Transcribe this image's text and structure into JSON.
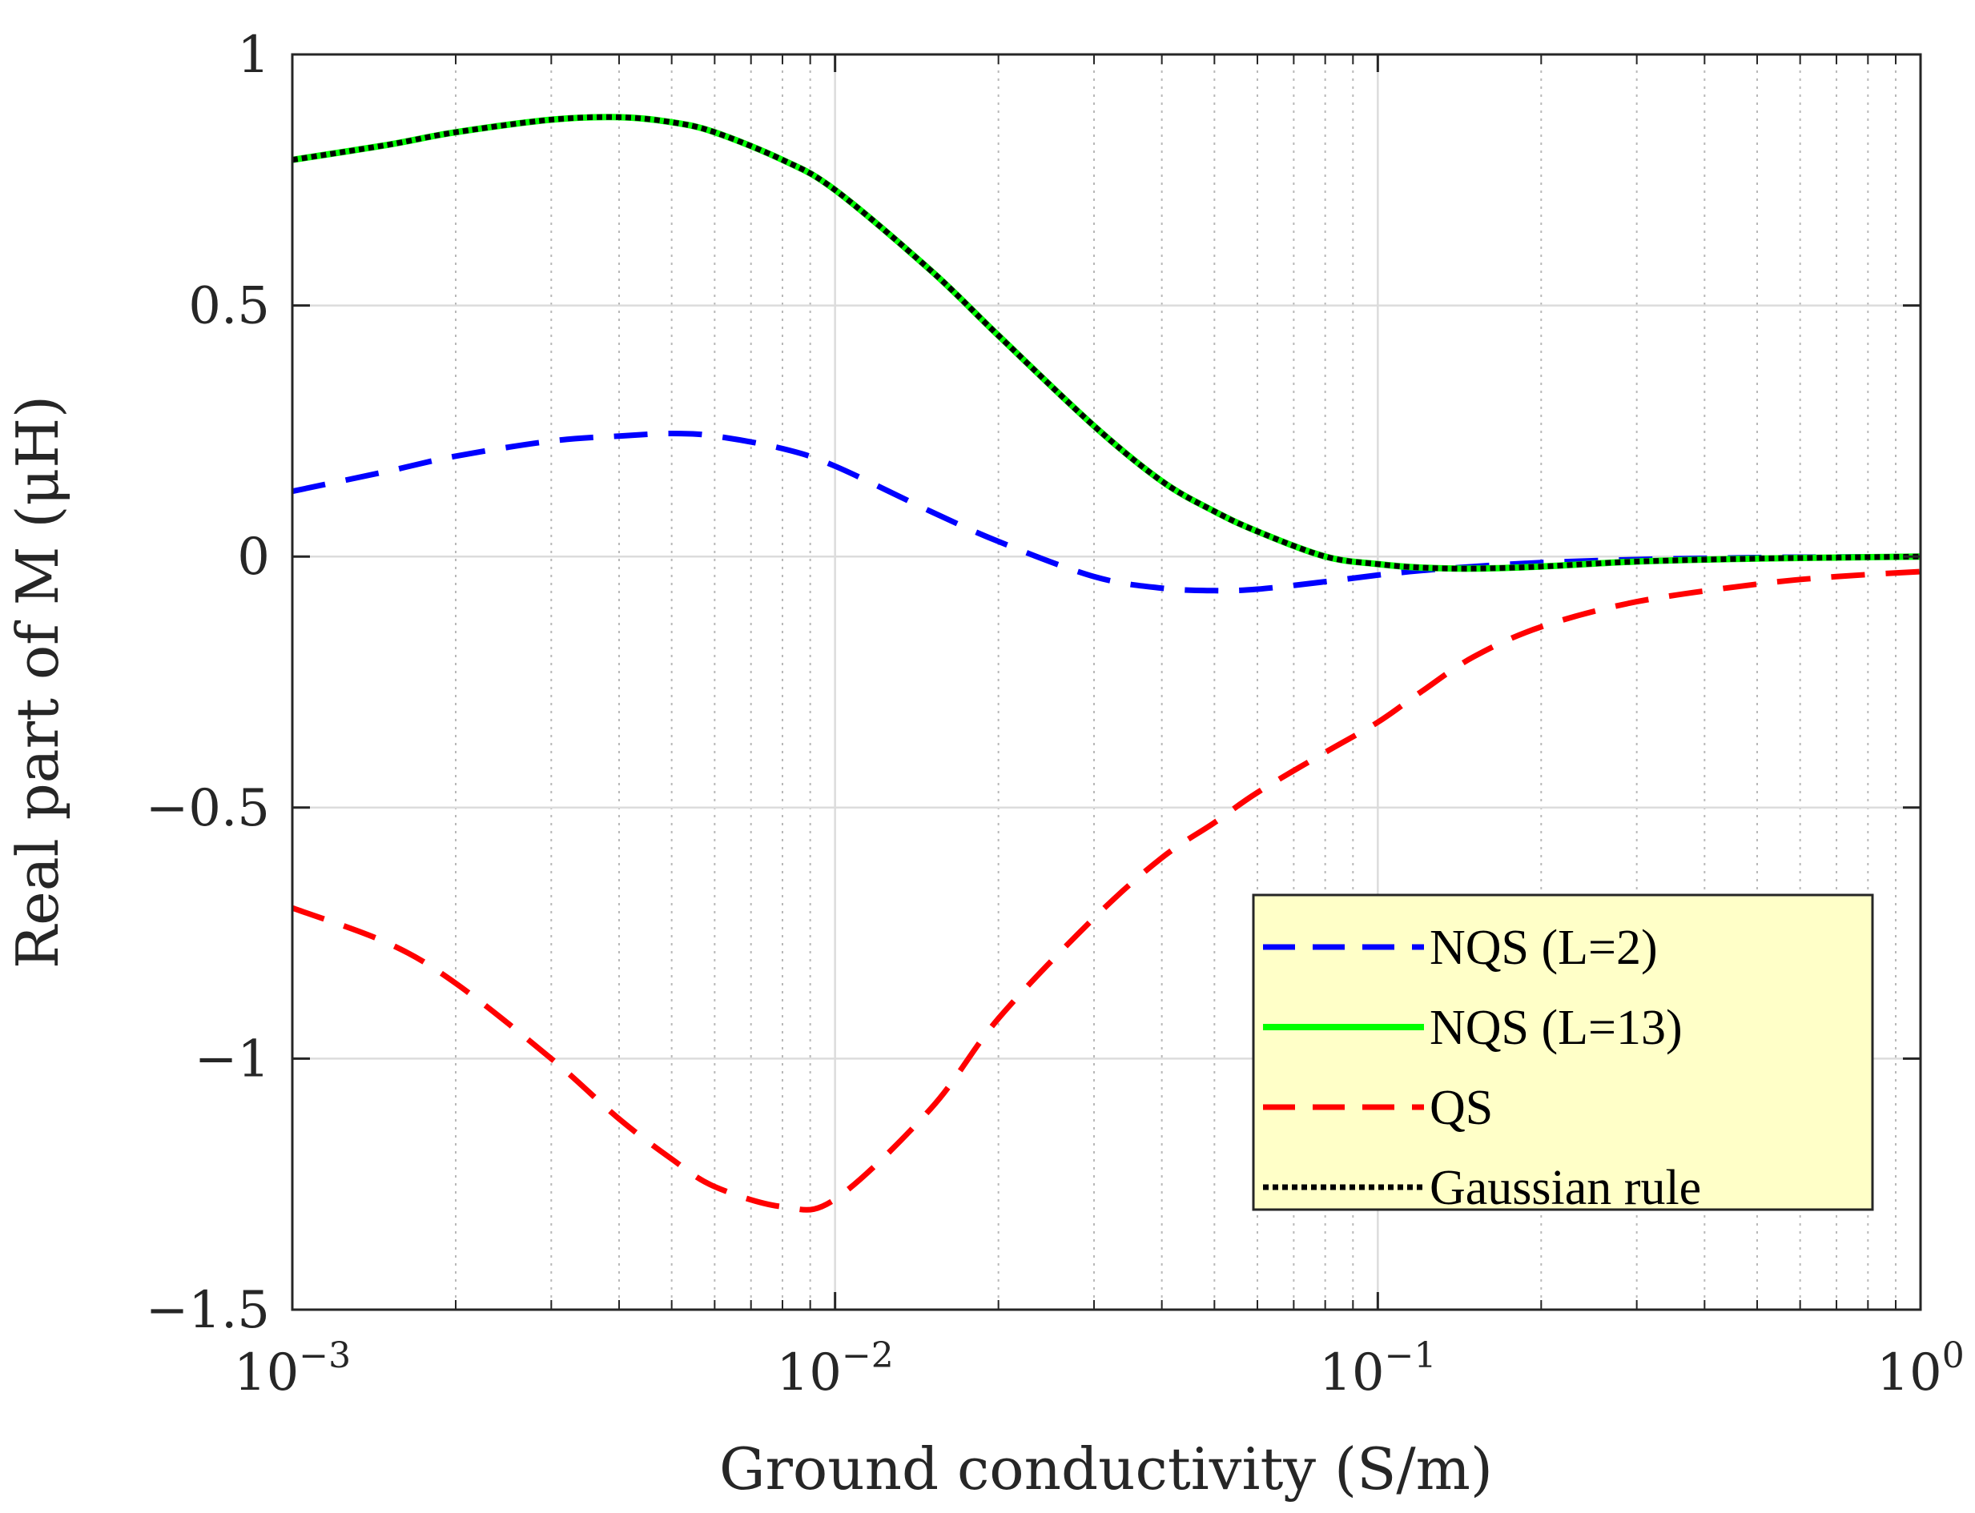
{
  "chart_data": {
    "type": "line",
    "title": "",
    "xlabel": "Ground conductivity (S/m)",
    "ylabel": "Real part of M (μH)",
    "xscale": "log",
    "xlim": [
      0.001,
      1
    ],
    "ylim": [
      -1.5,
      1
    ],
    "grid": true,
    "minor_grid_x": true,
    "legend_position": "bottom-right",
    "x_ticks": [
      {
        "value": 0.001,
        "base": "10",
        "exp": "−3"
      },
      {
        "value": 0.01,
        "base": "10",
        "exp": "−2"
      },
      {
        "value": 0.1,
        "base": "10",
        "exp": "−1"
      },
      {
        "value": 1,
        "base": "10",
        "exp": "0"
      }
    ],
    "y_ticks": [
      {
        "value": 1,
        "label": "1"
      },
      {
        "value": 0.5,
        "label": "0.5"
      },
      {
        "value": 0,
        "label": "0"
      },
      {
        "value": -0.5,
        "label": "−0.5"
      },
      {
        "value": -1,
        "label": "−1"
      },
      {
        "value": -1.5,
        "label": "−1.5"
      }
    ],
    "x": [
      0.001,
      0.0015,
      0.002,
      0.003,
      0.004,
      0.005,
      0.006,
      0.008,
      0.01,
      0.015,
      0.02,
      0.03,
      0.04,
      0.05,
      0.06,
      0.08,
      0.1,
      0.12,
      0.15,
      0.2,
      0.3,
      0.5,
      0.7,
      1.0
    ],
    "series": [
      {
        "name": "NQS (L=2)",
        "color": "#0000ff",
        "style": "dashed",
        "values": [
          0.13,
          0.17,
          0.2,
          0.23,
          0.24,
          0.245,
          0.24,
          0.215,
          0.18,
          0.09,
          0.03,
          -0.04,
          -0.063,
          -0.068,
          -0.065,
          -0.05,
          -0.037,
          -0.028,
          -0.02,
          -0.012,
          -0.006,
          -0.002,
          -0.001,
          0.0
        ]
      },
      {
        "name": "NQS (L=13)",
        "color": "#00ff00",
        "style": "solid",
        "values": [
          0.79,
          0.82,
          0.845,
          0.87,
          0.875,
          0.865,
          0.845,
          0.79,
          0.73,
          0.57,
          0.44,
          0.26,
          0.15,
          0.09,
          0.05,
          0.0,
          -0.015,
          -0.022,
          -0.024,
          -0.02,
          -0.01,
          -0.004,
          -0.002,
          0.0
        ]
      },
      {
        "name": "QS",
        "color": "#ff0000",
        "style": "dashed",
        "values": [
          -0.7,
          -0.77,
          -0.85,
          -1.0,
          -1.12,
          -1.2,
          -1.255,
          -1.295,
          -1.28,
          -1.1,
          -0.92,
          -0.72,
          -0.6,
          -0.53,
          -0.47,
          -0.39,
          -0.33,
          -0.27,
          -0.2,
          -0.14,
          -0.09,
          -0.055,
          -0.04,
          -0.03
        ]
      },
      {
        "name": "Gaussian rule",
        "color": "#000000",
        "style": "dotted",
        "values": [
          0.79,
          0.82,
          0.845,
          0.87,
          0.875,
          0.865,
          0.845,
          0.79,
          0.73,
          0.57,
          0.44,
          0.26,
          0.15,
          0.09,
          0.05,
          0.0,
          -0.015,
          -0.022,
          -0.024,
          -0.02,
          -0.01,
          -0.004,
          -0.002,
          0.0
        ]
      }
    ]
  }
}
